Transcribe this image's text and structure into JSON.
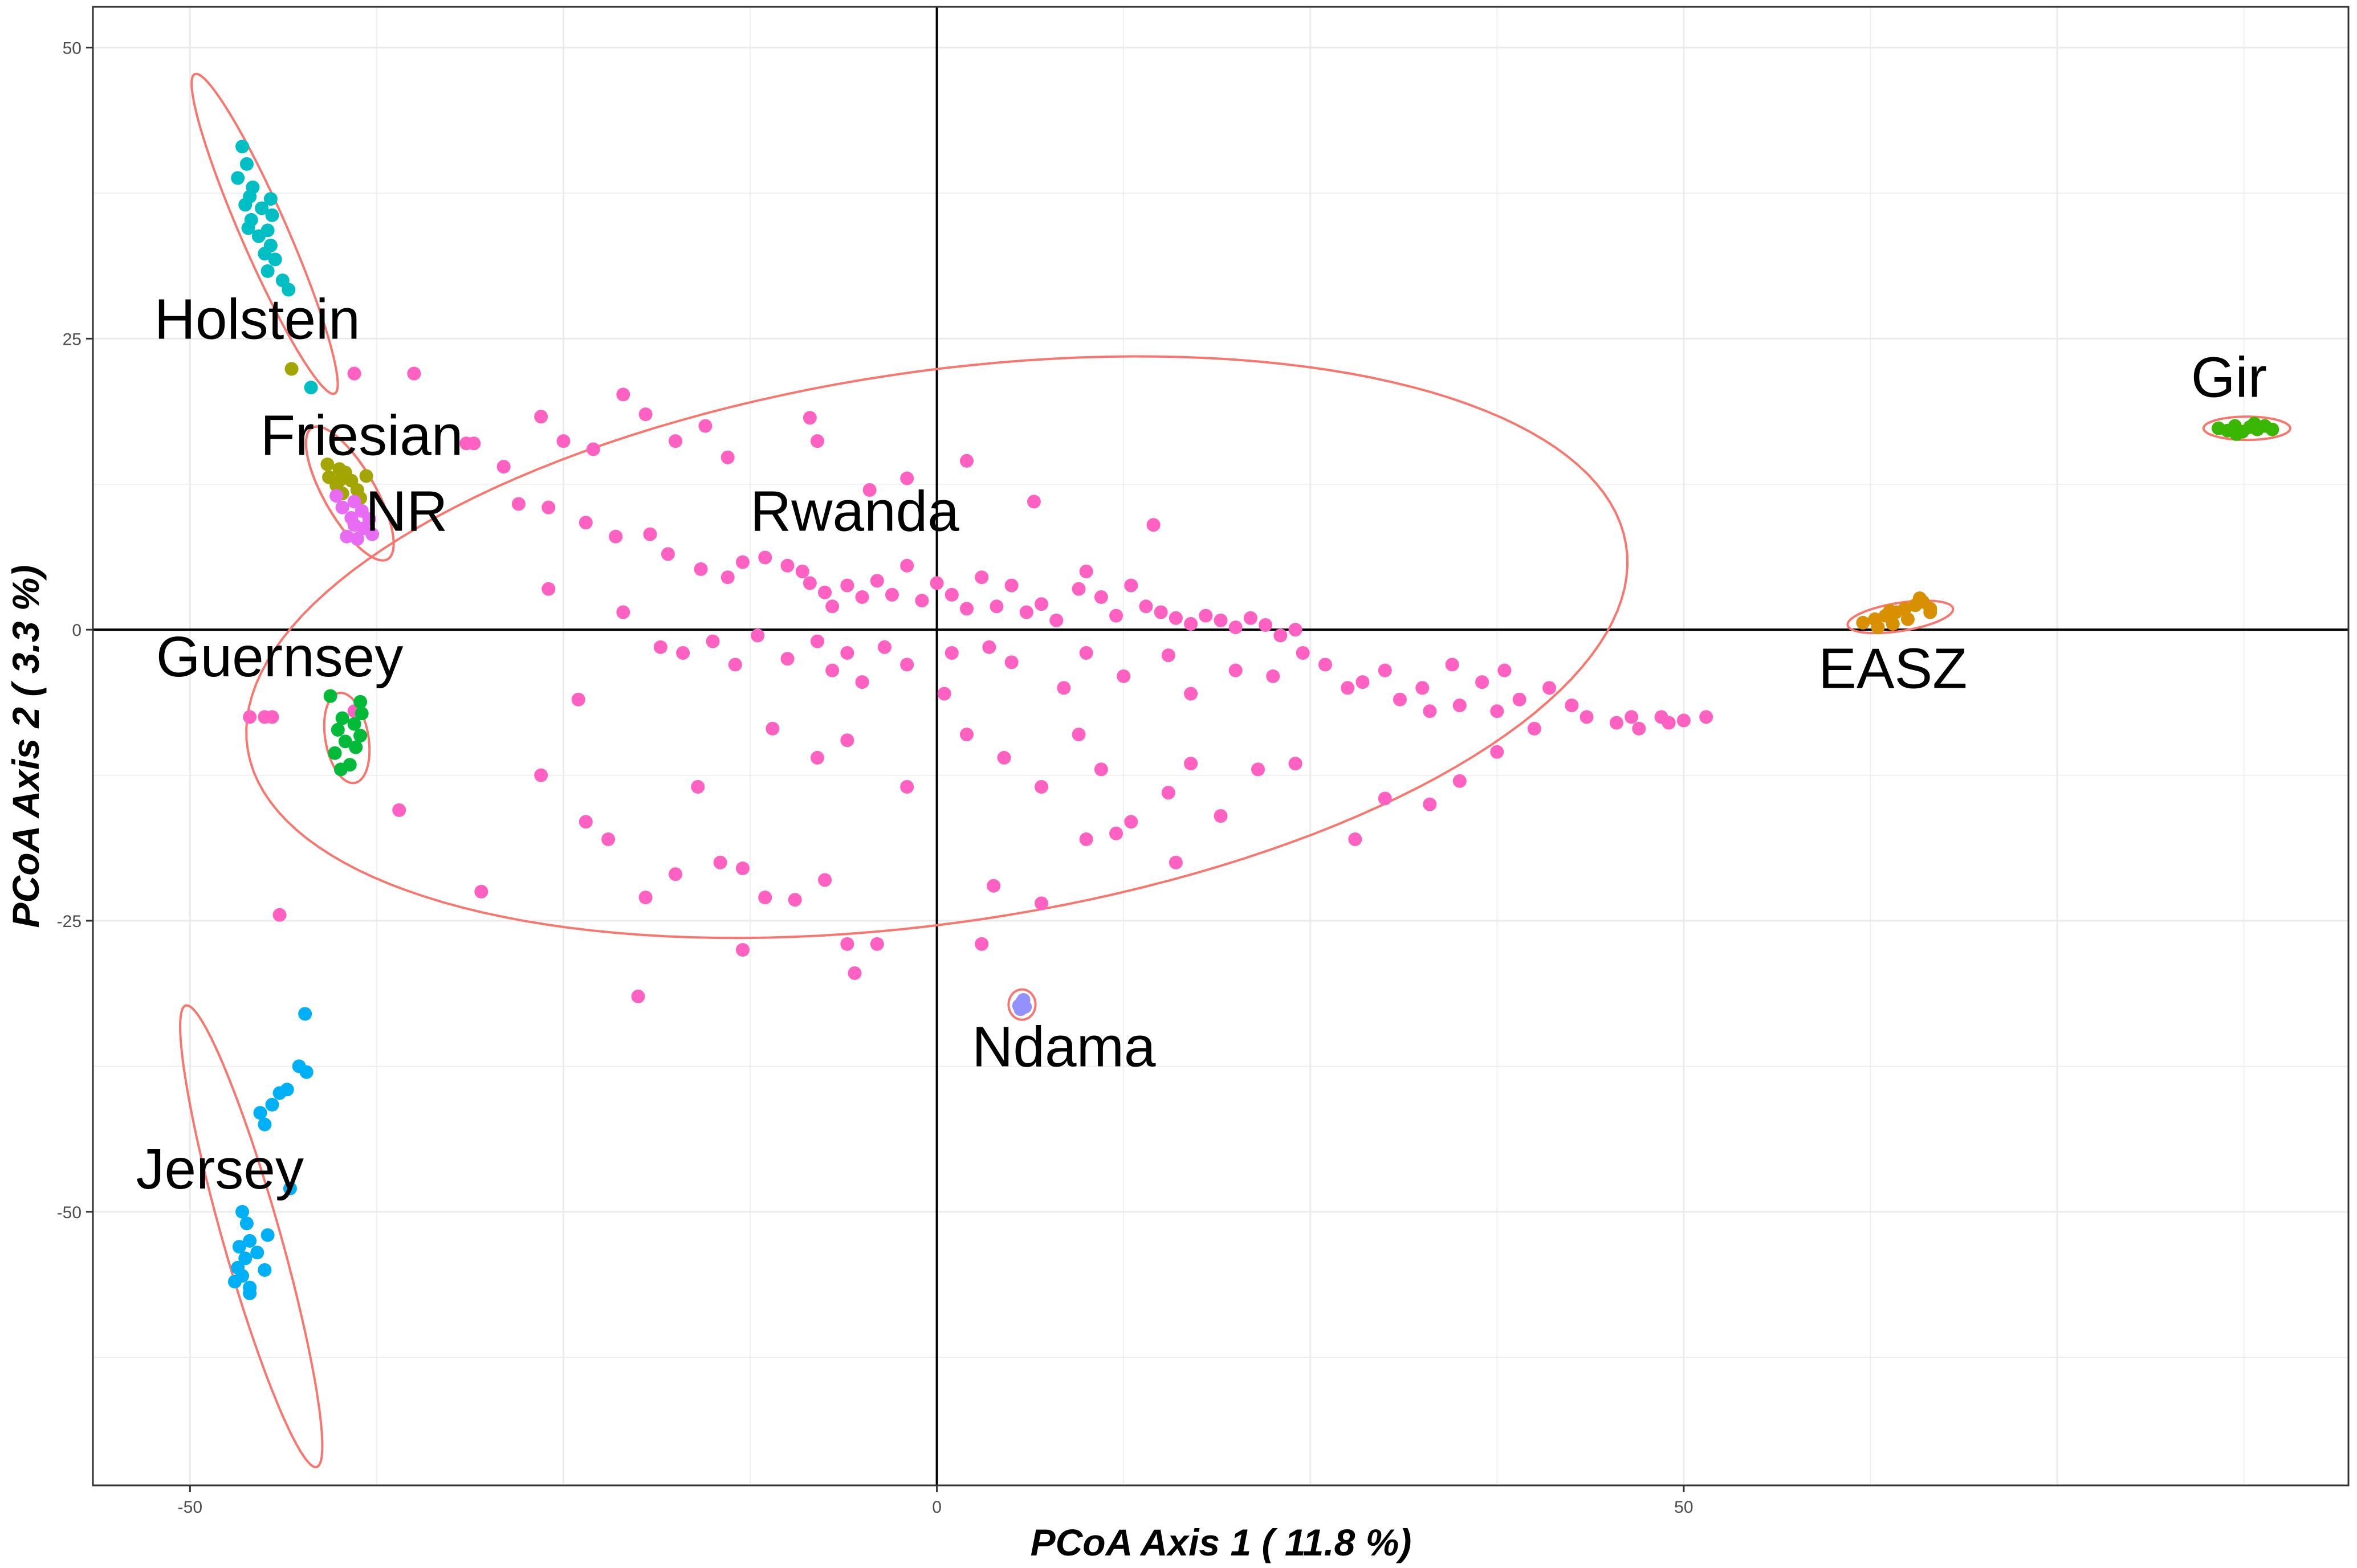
{
  "chart_data": {
    "type": "scatter",
    "xlabel": "PCoA Axis 1 ( 11.8 %)",
    "ylabel": "PCoA Axis 2 ( 3.3 %)",
    "xlim": [
      -56.5,
      94.5
    ],
    "ylim": [
      -73.5,
      53.5
    ],
    "x_ticks": [
      -50,
      0,
      50
    ],
    "y_ticks": [
      50,
      25,
      0,
      -25,
      -50
    ],
    "grid": true,
    "legend": "none",
    "reference_lines": {
      "x": 0,
      "y": 0
    },
    "ellipse_color": "#f8766d",
    "groups": [
      {
        "name": "Holstein",
        "color": "#00bfc4",
        "label_at": [
          -45.5,
          25
        ],
        "ellipse": {
          "cx": -45,
          "cy": 34,
          "rx": 14.5,
          "ry": 1.6,
          "angle_deg": -71.3
        },
        "points": [
          [
            -46.5,
            41.5
          ],
          [
            -46.2,
            40.0
          ],
          [
            -46.8,
            38.8
          ],
          [
            -45.8,
            38.0
          ],
          [
            -46.0,
            37.2
          ],
          [
            -44.6,
            37.0
          ],
          [
            -46.3,
            36.5
          ],
          [
            -45.2,
            36.2
          ],
          [
            -44.5,
            35.6
          ],
          [
            -45.9,
            35.2
          ],
          [
            -46.1,
            34.5
          ],
          [
            -44.8,
            34.3
          ],
          [
            -45.4,
            33.8
          ],
          [
            -44.6,
            33.0
          ],
          [
            -45.0,
            32.3
          ],
          [
            -44.3,
            31.8
          ],
          [
            -44.8,
            30.8
          ],
          [
            -43.8,
            30.0
          ],
          [
            -43.4,
            29.2
          ],
          [
            -41.9,
            20.8
          ]
        ]
      },
      {
        "name": "Friesian",
        "color": "#a3a500",
        "label_at": [
          -38.5,
          15
        ],
        "ellipse": {
          "cx": -39.3,
          "cy": 11.7,
          "rx": 6.2,
          "ry": 1.8,
          "angle_deg": -67
        },
        "points": [
          [
            -43.2,
            22.4
          ],
          [
            -40.8,
            14.2
          ],
          [
            -40.0,
            13.8
          ],
          [
            -39.6,
            13.5
          ],
          [
            -40.7,
            13.1
          ],
          [
            -39.2,
            12.8
          ],
          [
            -40.2,
            12.4
          ],
          [
            -38.8,
            12.0
          ],
          [
            -39.8,
            11.7
          ],
          [
            -38.6,
            11.3
          ],
          [
            -40.0,
            12.8
          ],
          [
            -38.2,
            13.2
          ]
        ]
      },
      {
        "name": "NR",
        "color": "#e76bf3",
        "label_at": [
          -35.5,
          8.5
        ],
        "ellipse": {
          "cx": -39.3,
          "cy": 11.7,
          "rx": 6.2,
          "ry": 1.8,
          "angle_deg": -67
        },
        "points": [
          [
            -40.2,
            11.5
          ],
          [
            -39.0,
            11.0
          ],
          [
            -39.8,
            10.5
          ],
          [
            -38.5,
            10.2
          ],
          [
            -39.2,
            9.6
          ],
          [
            -38.0,
            9.5
          ],
          [
            -39.0,
            9.0
          ],
          [
            -38.4,
            8.7
          ],
          [
            -37.8,
            8.2
          ],
          [
            -39.5,
            8.0
          ],
          [
            -38.8,
            7.8
          ]
        ]
      },
      {
        "name": "Rwanda",
        "color": "#ff61c3",
        "label_at": [
          -5.5,
          8.5
        ],
        "ellipse": {
          "cx": 0,
          "cy": -1.5,
          "rx": 47,
          "ry": 23.5,
          "angle_deg": 12
        },
        "points": [
          [
            -39.0,
            22.0
          ],
          [
            -35.0,
            22.0
          ],
          [
            -31.0,
            16.0
          ],
          [
            -26.5,
            18.3
          ],
          [
            -25.0,
            16.2
          ],
          [
            -23.0,
            15.5
          ],
          [
            -21.0,
            20.2
          ],
          [
            -19.5,
            18.5
          ],
          [
            -17.5,
            16.2
          ],
          [
            -15.5,
            17.5
          ],
          [
            -14.0,
            14.8
          ],
          [
            -8.5,
            18.2
          ],
          [
            -8.0,
            16.2
          ],
          [
            -4.5,
            12.0
          ],
          [
            -2.0,
            13.0
          ],
          [
            2.0,
            14.5
          ],
          [
            6.5,
            11.0
          ],
          [
            14.5,
            9.0
          ],
          [
            -28.0,
            10.8
          ],
          [
            -26.0,
            10.5
          ],
          [
            -23.5,
            9.2
          ],
          [
            -21.5,
            8.0
          ],
          [
            -19.2,
            8.2
          ],
          [
            -18.0,
            6.5
          ],
          [
            -15.8,
            5.2
          ],
          [
            -14.0,
            4.5
          ],
          [
            -13.0,
            5.8
          ],
          [
            -11.5,
            6.2
          ],
          [
            -10.0,
            5.5
          ],
          [
            -9.0,
            5.0
          ],
          [
            -8.5,
            4.0
          ],
          [
            -7.5,
            3.2
          ],
          [
            -7.0,
            2.0
          ],
          [
            -6.0,
            3.8
          ],
          [
            -5.0,
            2.8
          ],
          [
            -4.0,
            4.2
          ],
          [
            -3.0,
            3.0
          ],
          [
            -2.0,
            5.5
          ],
          [
            -1.0,
            2.5
          ],
          [
            0.0,
            4.0
          ],
          [
            1.0,
            3.0
          ],
          [
            2.0,
            1.8
          ],
          [
            3.0,
            4.5
          ],
          [
            4.0,
            2.0
          ],
          [
            5.0,
            3.8
          ],
          [
            6.0,
            1.5
          ],
          [
            7.0,
            2.2
          ],
          [
            8.0,
            0.8
          ],
          [
            9.5,
            3.5
          ],
          [
            10.0,
            5.0
          ],
          [
            11.0,
            2.8
          ],
          [
            12.0,
            1.2
          ],
          [
            13.0,
            3.8
          ],
          [
            14.0,
            2.0
          ],
          [
            15.0,
            1.5
          ],
          [
            16.0,
            1.0
          ],
          [
            17.0,
            0.5
          ],
          [
            18.0,
            1.2
          ],
          [
            19.0,
            0.8
          ],
          [
            20.0,
            0.2
          ],
          [
            21.0,
            1.0
          ],
          [
            22.0,
            0.4
          ],
          [
            23.0,
            -0.5
          ],
          [
            24.0,
            0.0
          ],
          [
            -26.0,
            3.5
          ],
          [
            -21.0,
            1.5
          ],
          [
            -18.5,
            -1.5
          ],
          [
            -17.0,
            -2.0
          ],
          [
            -15.0,
            -1.0
          ],
          [
            -13.5,
            -3.0
          ],
          [
            -12.0,
            -0.5
          ],
          [
            -10.0,
            -2.5
          ],
          [
            -8.0,
            -1.0
          ],
          [
            -7.0,
            -3.5
          ],
          [
            -6.0,
            -2.0
          ],
          [
            -5.0,
            -4.5
          ],
          [
            -3.5,
            -1.5
          ],
          [
            -2.0,
            -3.0
          ],
          [
            0.5,
            -5.5
          ],
          [
            1.0,
            -2.0
          ],
          [
            3.5,
            -1.5
          ],
          [
            5.0,
            -2.8
          ],
          [
            8.5,
            -5.0
          ],
          [
            10.0,
            -2.0
          ],
          [
            12.5,
            -4.0
          ],
          [
            15.5,
            -2.2
          ],
          [
            17.0,
            -5.5
          ],
          [
            20.0,
            -3.5
          ],
          [
            22.5,
            -4.0
          ],
          [
            24.5,
            -2.0
          ],
          [
            26.0,
            -3.0
          ],
          [
            27.5,
            -5.0
          ],
          [
            28.5,
            -4.5
          ],
          [
            30.0,
            -3.5
          ],
          [
            31.0,
            -6.0
          ],
          [
            32.5,
            -5.0
          ],
          [
            33.0,
            -7.0
          ],
          [
            34.5,
            -3.0
          ],
          [
            35.0,
            -6.5
          ],
          [
            36.5,
            -4.5
          ],
          [
            37.5,
            -7.0
          ],
          [
            38.0,
            -3.5
          ],
          [
            39.0,
            -6.0
          ],
          [
            40.0,
            -8.5
          ],
          [
            41.0,
            -5.0
          ],
          [
            42.5,
            -6.5
          ],
          [
            43.5,
            -7.5
          ],
          [
            45.5,
            -8.0
          ],
          [
            46.5,
            -7.5
          ],
          [
            47.0,
            -8.5
          ],
          [
            48.5,
            -7.5
          ],
          [
            49.0,
            -8.0
          ],
          [
            50.0,
            -7.8
          ],
          [
            51.5,
            -7.5
          ],
          [
            -24.0,
            -6.0
          ],
          [
            -16.0,
            -13.5
          ],
          [
            -11.0,
            -8.5
          ],
          [
            -8.0,
            -11.0
          ],
          [
            -6.0,
            -9.5
          ],
          [
            -2.0,
            -13.5
          ],
          [
            2.0,
            -9.0
          ],
          [
            4.5,
            -11.0
          ],
          [
            7.0,
            -13.5
          ],
          [
            9.5,
            -9.0
          ],
          [
            11.0,
            -12.0
          ],
          [
            13.0,
            -16.5
          ],
          [
            15.5,
            -14.0
          ],
          [
            17.0,
            -11.5
          ],
          [
            19.0,
            -16.0
          ],
          [
            21.5,
            -12.0
          ],
          [
            24.0,
            -11.5
          ],
          [
            28.0,
            -18.0
          ],
          [
            30.0,
            -14.5
          ],
          [
            33.0,
            -15.0
          ],
          [
            35.0,
            -13.0
          ],
          [
            37.5,
            -10.5
          ],
          [
            -30.5,
            -22.5
          ],
          [
            -26.5,
            -12.5
          ],
          [
            -23.5,
            -16.5
          ],
          [
            -22.0,
            -18.0
          ],
          [
            -19.5,
            -23.0
          ],
          [
            -17.5,
            -21.0
          ],
          [
            -14.5,
            -20.0
          ],
          [
            -13.0,
            -20.5
          ],
          [
            -11.5,
            -23.0
          ],
          [
            -9.5,
            -23.2
          ],
          [
            -7.5,
            -21.5
          ],
          [
            -6.0,
            -27.0
          ],
          [
            -5.5,
            -29.5
          ],
          [
            -4.0,
            -27.0
          ],
          [
            -20.0,
            -31.5
          ],
          [
            -13.0,
            -27.5
          ],
          [
            3.0,
            -27.0
          ],
          [
            3.8,
            -22.0
          ],
          [
            7.0,
            -23.5
          ],
          [
            12.0,
            -17.5
          ],
          [
            16.0,
            -20.0
          ],
          [
            10.0,
            -18.0
          ],
          [
            -36.0,
            -15.5
          ],
          [
            -44.5,
            -7.5
          ],
          [
            -45.0,
            -7.5
          ],
          [
            -46.0,
            -7.5
          ],
          [
            -39.0,
            -7.0
          ],
          [
            -44.0,
            -24.5
          ],
          [
            -31.5,
            16.0
          ],
          [
            -29.0,
            14.0
          ]
        ]
      },
      {
        "name": "Guernsey",
        "color": "#00ba38",
        "label_at": [
          -44,
          -4
        ],
        "ellipse": {
          "cx": -39.5,
          "cy": -9.3,
          "rx": 3.9,
          "ry": 1.45,
          "angle_deg": -83
        },
        "points": [
          [
            -40.6,
            -5.7
          ],
          [
            -38.6,
            -6.2
          ],
          [
            -39.8,
            -7.6
          ],
          [
            -39.0,
            -8.1
          ],
          [
            -40.1,
            -8.6
          ],
          [
            -38.6,
            -9.1
          ],
          [
            -39.6,
            -9.6
          ],
          [
            -38.9,
            -10.1
          ],
          [
            -40.3,
            -10.6
          ],
          [
            -39.3,
            -11.6
          ],
          [
            -38.5,
            -7.2
          ],
          [
            -39.9,
            -12.0
          ]
        ]
      },
      {
        "name": "Jersey",
        "color": "#00b0f6",
        "label_at": [
          -48,
          -48
        ],
        "ellipse": {
          "cx": -45.9,
          "cy": -52.1,
          "rx": 20.3,
          "ry": 1.95,
          "angle_deg": -77.6
        },
        "points": [
          [
            -42.3,
            -33.0
          ],
          [
            -42.7,
            -37.5
          ],
          [
            -42.2,
            -38.0
          ],
          [
            -43.5,
            -39.5
          ],
          [
            -44.0,
            -39.8
          ],
          [
            -44.5,
            -40.8
          ],
          [
            -45.3,
            -41.5
          ],
          [
            -45.0,
            -42.5
          ],
          [
            -43.3,
            -48.0
          ],
          [
            -46.5,
            -50.0
          ],
          [
            -46.2,
            -51.0
          ],
          [
            -46.0,
            -52.5
          ],
          [
            -46.7,
            -53.0
          ],
          [
            -45.5,
            -53.5
          ],
          [
            -46.3,
            -54.0
          ],
          [
            -45.0,
            -55.0
          ],
          [
            -46.5,
            -55.5
          ],
          [
            -47.0,
            -56.0
          ],
          [
            -46.0,
            -56.5
          ],
          [
            -46.0,
            -57.0
          ],
          [
            -46.8,
            -54.8
          ],
          [
            -44.8,
            -52.0
          ]
        ]
      },
      {
        "name": "EASZ",
        "color": "#d89000",
        "label_at": [
          64,
          -5
        ],
        "ellipse": {
          "cx": 64.5,
          "cy": 1.1,
          "rx": 3.6,
          "ry": 1.2,
          "angle_deg": 12
        },
        "points": [
          [
            62.0,
            0.6
          ],
          [
            62.8,
            0.9
          ],
          [
            63.5,
            1.2
          ],
          [
            64.2,
            1.5
          ],
          [
            64.8,
            1.8
          ],
          [
            65.5,
            2.1
          ],
          [
            66.0,
            2.4
          ],
          [
            66.5,
            1.8
          ],
          [
            63.0,
            0.2
          ],
          [
            64.0,
            0.5
          ],
          [
            65.0,
            0.9
          ],
          [
            66.5,
            1.5
          ],
          [
            63.8,
            1.6
          ],
          [
            65.8,
            2.7
          ]
        ]
      },
      {
        "name": "Gir",
        "color": "#39b600",
        "label_at": [
          86.5,
          20
        ],
        "ellipse": {
          "cx": 87.7,
          "cy": 17.3,
          "rx": 2.9,
          "ry": 1.0,
          "angle_deg": 0
        },
        "points": [
          [
            85.8,
            17.3
          ],
          [
            86.4,
            17.1
          ],
          [
            86.9,
            17.5
          ],
          [
            87.4,
            17.0
          ],
          [
            87.9,
            17.4
          ],
          [
            88.4,
            17.2
          ],
          [
            88.9,
            17.5
          ],
          [
            89.4,
            17.2
          ],
          [
            87.0,
            16.8
          ],
          [
            88.2,
            17.7
          ]
        ]
      },
      {
        "name": "Ndama",
        "color": "#9590ff",
        "label_at": [
          8.5,
          -37.5
        ],
        "ellipse": {
          "cx": 5.7,
          "cy": -32.2,
          "rx": 0.9,
          "ry": 1.3,
          "angle_deg": 0
        },
        "points": [
          [
            5.7,
            -32.0
          ],
          [
            5.5,
            -32.3
          ],
          [
            5.9,
            -32.4
          ],
          [
            5.6,
            -32.6
          ],
          [
            5.8,
            -31.8
          ]
        ]
      }
    ]
  }
}
